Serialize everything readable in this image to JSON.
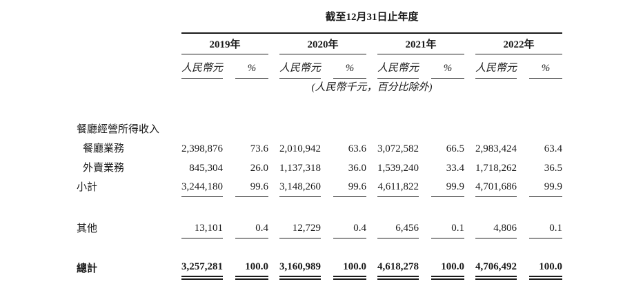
{
  "page": {
    "background": "#ffffff",
    "text_color": "#1a1a1a"
  },
  "table": {
    "title": "截至12月31日止年度",
    "unit_note": "(人民幣千元，百分比除外)",
    "year_groups": [
      {
        "year": "2019年",
        "amount_header": "人民幣元",
        "percent_header": "%"
      },
      {
        "year": "2020年",
        "amount_header": "人民幣元",
        "percent_header": "%"
      },
      {
        "year": "2021年",
        "amount_header": "人民幣元",
        "percent_header": "%"
      },
      {
        "year": "2022年",
        "amount_header": "人民幣元",
        "percent_header": "%"
      }
    ],
    "rows": [
      {
        "id": "restaurant-operation-revenue",
        "label": "餐廳經營所得收入",
        "indent": false,
        "bold": false,
        "rule": "none",
        "gap_before": "none",
        "values": [
          "",
          "",
          "",
          "",
          "",
          "",
          "",
          ""
        ]
      },
      {
        "id": "restaurant-business",
        "label": "餐廳業務",
        "indent": true,
        "bold": false,
        "rule": "none",
        "gap_before": "none",
        "values": [
          "2,398,876",
          "73.6",
          "2,010,942",
          "63.6",
          "3,072,582",
          "66.5",
          "2,983,424",
          "63.4"
        ]
      },
      {
        "id": "delivery-business",
        "label": "外賣業務",
        "indent": true,
        "bold": false,
        "rule": "none",
        "gap_before": "none",
        "values": [
          "845,304",
          "26.0",
          "1,137,318",
          "36.0",
          "1,539,240",
          "33.4",
          "1,718,262",
          "36.5"
        ]
      },
      {
        "id": "subtotal",
        "label": "小計",
        "indent": false,
        "bold": false,
        "rule": "single",
        "gap_before": "none",
        "values": [
          "3,244,180",
          "99.6",
          "3,148,260",
          "99.6",
          "4,611,822",
          "99.9",
          "4,701,686",
          "99.9"
        ]
      },
      {
        "id": "others",
        "label": "其他",
        "indent": false,
        "bold": false,
        "rule": "single",
        "gap_before": "large",
        "values": [
          "13,101",
          "0.4",
          "12,729",
          "0.4",
          "6,456",
          "0.1",
          "4,806",
          "0.1"
        ]
      },
      {
        "id": "total",
        "label": "總計",
        "indent": false,
        "bold": true,
        "rule": "double",
        "gap_before": "small",
        "values": [
          "3,257,281",
          "100.0",
          "3,160,989",
          "100.0",
          "4,618,278",
          "100.0",
          "4,706,492",
          "100.0"
        ]
      }
    ]
  }
}
